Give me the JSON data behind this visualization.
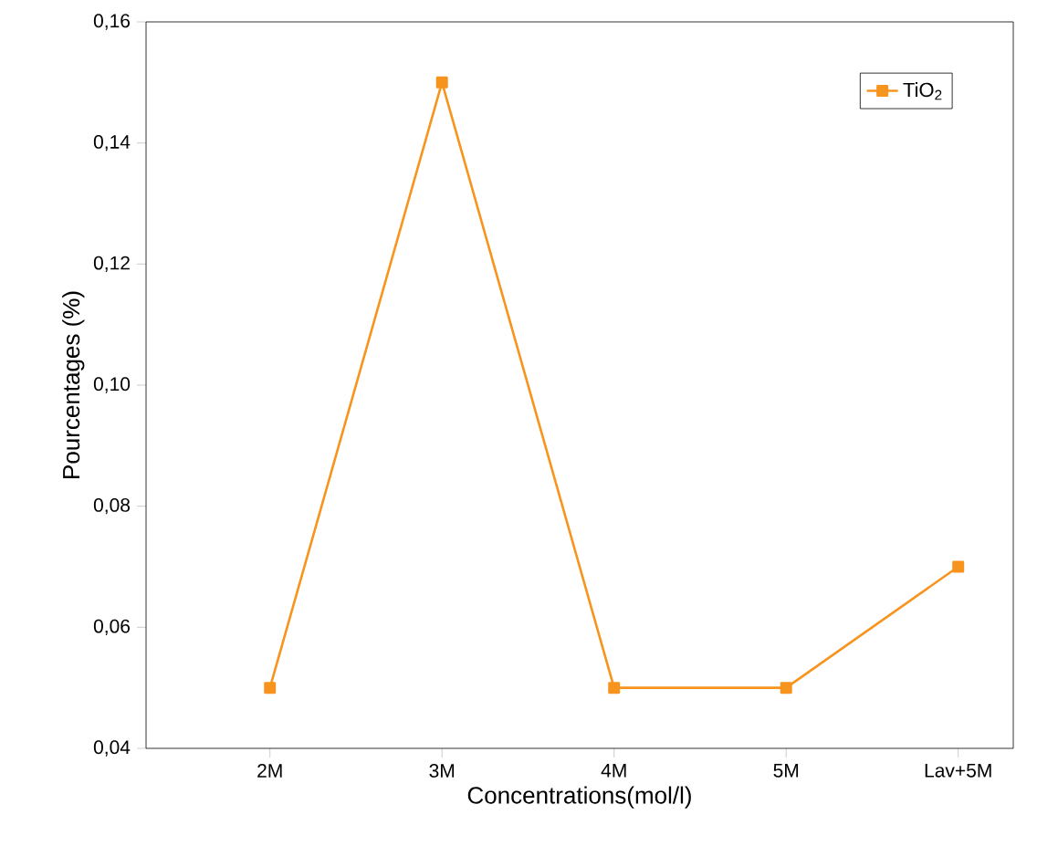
{
  "chart_data": {
    "type": "line",
    "xlabel": "Concentrations(mol/l)",
    "ylabel": "Pourcentages (%)",
    "categories": [
      "2M",
      "3M",
      "4M",
      "5M",
      "Lav+5M"
    ],
    "series": [
      {
        "name": "TiO$_{2}$",
        "color": "#f7941d",
        "values": [
          0.05,
          0.15,
          0.05,
          0.05,
          0.07
        ]
      }
    ],
    "ylim": [
      0.04,
      0.16
    ],
    "yticks": [
      {
        "value": 0.04,
        "label": "0,04"
      },
      {
        "value": 0.06,
        "label": "0,06"
      },
      {
        "value": 0.08,
        "label": "0,08"
      },
      {
        "value": 0.1,
        "label": "0,10"
      },
      {
        "value": 0.12,
        "label": "0,12"
      },
      {
        "value": 0.14,
        "label": "0,14"
      },
      {
        "value": 0.16,
        "label": "0,16"
      }
    ],
    "grid": false,
    "legend": "top right",
    "marker": "square",
    "line_style": "solid"
  }
}
